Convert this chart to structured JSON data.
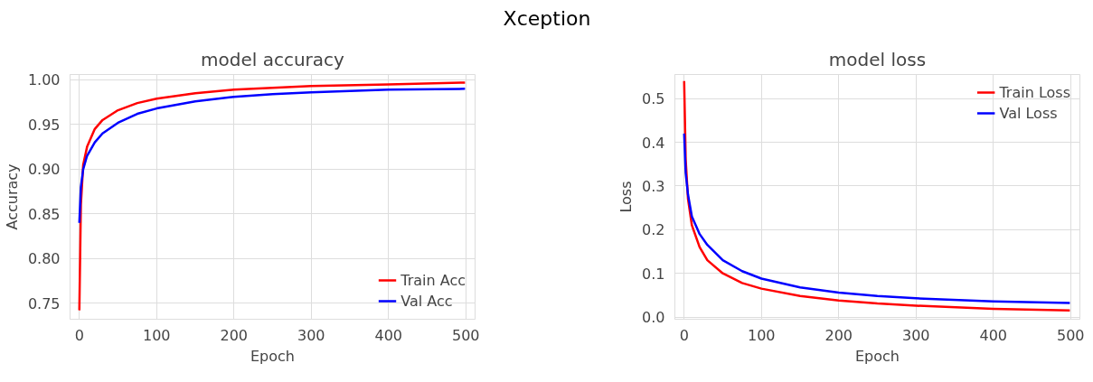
{
  "chart_data": [
    {
      "type": "line",
      "title": "model accuracy",
      "xlabel": "Epoch",
      "ylabel": "Accuracy",
      "annotations": [
        "Xception"
      ],
      "x": [
        0,
        2,
        5,
        10,
        20,
        30,
        50,
        75,
        100,
        150,
        200,
        250,
        300,
        400,
        499
      ],
      "series": [
        {
          "name": "Train Acc",
          "color": "#ff0000",
          "values": [
            0.742,
            0.86,
            0.905,
            0.925,
            0.945,
            0.955,
            0.966,
            0.974,
            0.979,
            0.985,
            0.989,
            0.991,
            0.993,
            0.995,
            0.997
          ]
        },
        {
          "name": "Val Acc",
          "color": "#0000ff",
          "values": [
            0.84,
            0.88,
            0.9,
            0.915,
            0.93,
            0.94,
            0.952,
            0.962,
            0.968,
            0.976,
            0.981,
            0.984,
            0.986,
            0.989,
            0.99
          ]
        }
      ],
      "xlim": [
        -12,
        512
      ],
      "ylim": [
        0.732,
        1.006
      ],
      "xticks": [
        0,
        100,
        200,
        300,
        400,
        500
      ],
      "yticks": [
        {
          "value": 0.75,
          "label": "0.75"
        },
        {
          "value": 0.8,
          "label": "0.80"
        },
        {
          "value": 0.85,
          "label": "0.85"
        },
        {
          "value": 0.9,
          "label": "0.90"
        },
        {
          "value": 0.95,
          "label": "0.95"
        },
        {
          "value": 1.0,
          "label": "1.00"
        }
      ],
      "grid": true,
      "legend": "bottom right"
    },
    {
      "type": "line",
      "title": "model loss",
      "xlabel": "Epoch",
      "ylabel": "Loss",
      "x": [
        0,
        2,
        5,
        10,
        20,
        30,
        50,
        75,
        100,
        150,
        200,
        250,
        300,
        400,
        499
      ],
      "series": [
        {
          "name": "Train Loss",
          "color": "#ff0000",
          "values": [
            0.54,
            0.36,
            0.27,
            0.21,
            0.16,
            0.13,
            0.1,
            0.078,
            0.065,
            0.048,
            0.038,
            0.031,
            0.026,
            0.019,
            0.015
          ]
        },
        {
          "name": "Val Loss",
          "color": "#0000ff",
          "values": [
            0.42,
            0.33,
            0.28,
            0.23,
            0.19,
            0.165,
            0.13,
            0.105,
            0.088,
            0.068,
            0.056,
            0.048,
            0.043,
            0.036,
            0.032
          ]
        }
      ],
      "xlim": [
        -12,
        512
      ],
      "ylim": [
        -0.005,
        0.555
      ],
      "xticks": [
        0,
        100,
        200,
        300,
        400,
        500
      ],
      "yticks": [
        {
          "value": 0,
          "label": "0.0"
        },
        {
          "value": 0.1,
          "label": "0.1"
        },
        {
          "value": 0.2,
          "label": "0.2"
        },
        {
          "value": 0.3,
          "label": "0.3"
        },
        {
          "value": 0.4,
          "label": "0.4"
        },
        {
          "value": 0.5,
          "label": "0.5"
        }
      ],
      "grid": true,
      "legend": "top right"
    }
  ]
}
